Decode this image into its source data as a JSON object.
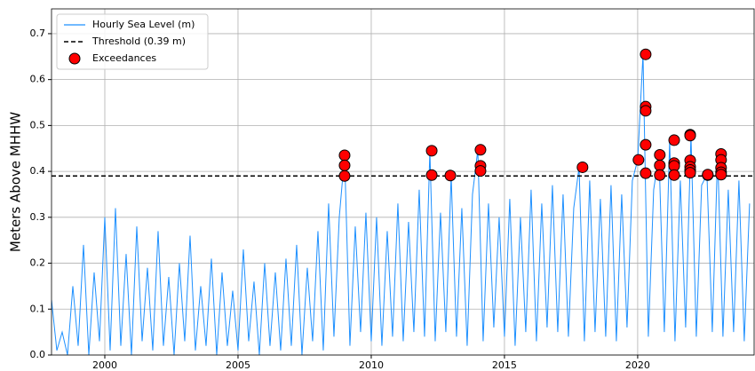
{
  "chart_data": {
    "type": "line",
    "ylabel": "Meters Above MHHW",
    "xlim": [
      1998.0,
      2024.37
    ],
    "ylim": [
      0,
      0.754
    ],
    "xticks": [
      2000,
      2005,
      2010,
      2015,
      2020
    ],
    "yticks": [
      {
        "value": 0,
        "label": "0.0"
      },
      0.1,
      0.2,
      0.3,
      0.4,
      0.5,
      0.6,
      0.7
    ],
    "grid": true,
    "legend": "upper-left",
    "series": [
      {
        "name": "Hourly Sea Level (m)",
        "kind": "line",
        "color": "#1e90ff",
        "x": [
          1998.0,
          1998.2,
          1998.4,
          1998.6,
          1998.8,
          1999.0,
          1999.2,
          1999.4,
          1999.6,
          1999.8,
          2000.0,
          2000.2,
          2000.4,
          2000.6,
          2000.8,
          2001.0,
          2001.2,
          2001.4,
          2001.6,
          2001.8,
          2002.0,
          2002.2,
          2002.4,
          2002.6,
          2002.8,
          2003.0,
          2003.2,
          2003.4,
          2003.6,
          2003.8,
          2004.0,
          2004.2,
          2004.4,
          2004.6,
          2004.8,
          2005.0,
          2005.2,
          2005.4,
          2005.6,
          2005.8,
          2006.0,
          2006.2,
          2006.4,
          2006.6,
          2006.8,
          2007.0,
          2007.2,
          2007.4,
          2007.6,
          2007.8,
          2008.0,
          2008.2,
          2008.4,
          2008.6,
          2008.8,
          2009.0,
          2009.2,
          2009.4,
          2009.6,
          2009.8,
          2010.0,
          2010.2,
          2010.4,
          2010.6,
          2010.8,
          2011.0,
          2011.2,
          2011.4,
          2011.6,
          2011.8,
          2012.0,
          2012.2,
          2012.4,
          2012.6,
          2012.8,
          2013.0,
          2013.2,
          2013.4,
          2013.6,
          2013.8,
          2014.0,
          2014.2,
          2014.4,
          2014.6,
          2014.8,
          2015.0,
          2015.2,
          2015.4,
          2015.6,
          2015.8,
          2016.0,
          2016.2,
          2016.4,
          2016.6,
          2016.8,
          2017.0,
          2017.2,
          2017.4,
          2017.6,
          2017.8,
          2018.0,
          2018.2,
          2018.4,
          2018.6,
          2018.8,
          2019.0,
          2019.2,
          2019.4,
          2019.6,
          2019.8,
          2020.0,
          2020.2,
          2020.4,
          2020.6,
          2020.8,
          2021.0,
          2021.2,
          2021.4,
          2021.6,
          2021.8,
          2022.0,
          2022.2,
          2022.4,
          2022.6,
          2022.8,
          2023.0,
          2023.2,
          2023.4,
          2023.6,
          2023.8,
          2024.0,
          2024.2
        ],
        "values": [
          0.12,
          0.01,
          0.05,
          0.0,
          0.15,
          0.02,
          0.24,
          0.0,
          0.18,
          0.03,
          0.3,
          0.01,
          0.32,
          0.02,
          0.22,
          0.0,
          0.28,
          0.03,
          0.19,
          0.01,
          0.27,
          0.02,
          0.17,
          0.0,
          0.2,
          0.03,
          0.26,
          0.01,
          0.15,
          0.02,
          0.21,
          0.0,
          0.18,
          0.02,
          0.14,
          0.01,
          0.23,
          0.03,
          0.16,
          0.0,
          0.2,
          0.02,
          0.18,
          0.01,
          0.21,
          0.02,
          0.24,
          0.0,
          0.19,
          0.03,
          0.27,
          0.01,
          0.33,
          0.04,
          0.3,
          0.435,
          0.02,
          0.28,
          0.05,
          0.31,
          0.03,
          0.3,
          0.02,
          0.27,
          0.04,
          0.33,
          0.03,
          0.29,
          0.05,
          0.36,
          0.04,
          0.445,
          0.03,
          0.31,
          0.05,
          0.391,
          0.04,
          0.32,
          0.02,
          0.35,
          0.447,
          0.03,
          0.33,
          0.06,
          0.3,
          0.04,
          0.34,
          0.02,
          0.3,
          0.05,
          0.36,
          0.03,
          0.33,
          0.06,
          0.37,
          0.05,
          0.35,
          0.04,
          0.32,
          0.409,
          0.03,
          0.38,
          0.05,
          0.34,
          0.04,
          0.37,
          0.03,
          0.35,
          0.06,
          0.38,
          0.425,
          0.655,
          0.04,
          0.36,
          0.436,
          0.05,
          0.468,
          0.03,
          0.38,
          0.06,
          0.48,
          0.04,
          0.37,
          0.393,
          0.05,
          0.438,
          0.04,
          0.36,
          0.05,
          0.38,
          0.03,
          0.33
        ]
      },
      {
        "name": "Threshold (0.39 m)",
        "kind": "hline",
        "color": "#000000",
        "y": 0.39
      },
      {
        "name": "Exceedances",
        "kind": "scatter",
        "color": "#ff0000",
        "x": [
          2009.0,
          2009.0,
          2009.0,
          2012.27,
          2012.27,
          2012.97,
          2014.1,
          2014.1,
          2014.1,
          2017.93,
          2020.03,
          2020.3,
          2020.3,
          2020.3,
          2020.3,
          2020.3,
          2020.83,
          2020.83,
          2020.83,
          2021.37,
          2021.37,
          2021.37,
          2021.37,
          2021.97,
          2021.97,
          2021.97,
          2021.97,
          2021.97,
          2021.97,
          2022.63,
          2022.63,
          2023.13,
          2023.13,
          2023.13,
          2023.13,
          2023.13
        ],
        "values": [
          0.435,
          0.413,
          0.39,
          0.445,
          0.392,
          0.391,
          0.447,
          0.412,
          0.401,
          0.409,
          0.425,
          0.655,
          0.541,
          0.532,
          0.458,
          0.396,
          0.436,
          0.413,
          0.392,
          0.468,
          0.418,
          0.412,
          0.392,
          0.48,
          0.478,
          0.424,
          0.41,
          0.403,
          0.397,
          0.392,
          0.393,
          0.438,
          0.425,
          0.408,
          0.398,
          0.393
        ]
      }
    ]
  }
}
